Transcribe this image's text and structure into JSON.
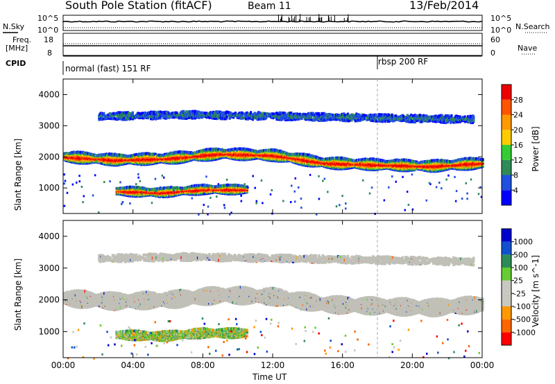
{
  "header": {
    "station": "South Pole Station (fitACF)",
    "beam": "Beam 11",
    "date": "13/Feb/2014"
  },
  "sky_panel": {
    "left_label": "N.Sky",
    "right_label": "N.Search",
    "left_ticks": [
      "10^5",
      "10^0"
    ],
    "right_ticks": [
      "10^5",
      "10^0"
    ]
  },
  "freq_panel": {
    "left_label_1": "Freq.",
    "left_label_2": "[MHz]",
    "right_label": "Nave",
    "left_ticks": [
      "18",
      "8"
    ],
    "right_ticks": [
      "60",
      "0"
    ]
  },
  "cpid_panel": {
    "label": "CPID",
    "modes": [
      "normal (fast) 151 RF",
      "rbsp 200 RF"
    ],
    "mode_change_hour": 18.0
  },
  "colors": {
    "power_scale": [
      "#0000ff",
      "#2050e0",
      "#2e8b57",
      "#33cc33",
      "#ffcc00",
      "#ff9900",
      "#ff5500",
      "#ee0000"
    ],
    "velocity_scale": [
      "#ff0000",
      "#ff6600",
      "#ff9900",
      "#c8c8c0",
      "#c8c8c0",
      "#66cc33",
      "#2e8b57",
      "#1050d0",
      "#0000cc"
    ],
    "ground_scatter": "#c0c0b8"
  },
  "chart_data": [
    {
      "type": "heatmap",
      "name": "power",
      "ylabel": "Slant Range [km]",
      "xlabel": "Time UT",
      "x_ticks": [
        "00:00",
        "04:00",
        "08:00",
        "12:00",
        "16:00",
        "20:00",
        "00:00"
      ],
      "xlim_hours": [
        0,
        24
      ],
      "ylim_km": [
        180,
        4500
      ],
      "y_ticks": [
        1000,
        2000,
        3000,
        4000
      ],
      "colorbar": {
        "label": "Power [dB]",
        "ticks": [
          4,
          8,
          12,
          16,
          20,
          24,
          28
        ],
        "range": [
          0,
          30
        ]
      },
      "bands": [
        {
          "t_start": 0,
          "t_end": 24,
          "range_center_km": [
            2050,
            1950,
            2000,
            2150,
            2100,
            1850,
            1800,
            1750,
            1850
          ],
          "width_km": 300,
          "peak_db": 22
        },
        {
          "t_start": 3,
          "t_end": 10.5,
          "range_center_km": [
            950,
            900,
            1000,
            1000
          ],
          "width_km": 250,
          "peak_db": 20
        },
        {
          "t_start": 2,
          "t_end": 23.5,
          "range_center_km": [
            3350,
            3400,
            3350,
            3300,
            3250
          ],
          "width_km": 200,
          "peak_db": 8
        }
      ]
    },
    {
      "type": "heatmap",
      "name": "velocity",
      "ylabel": "Slant Range [km]",
      "xlabel": "Time UT",
      "x_ticks": [
        "00:00",
        "04:00",
        "08:00",
        "12:00",
        "16:00",
        "20:00",
        "00:00"
      ],
      "xlim_hours": [
        0,
        24
      ],
      "ylim_km": [
        180,
        4500
      ],
      "y_ticks": [
        1000,
        2000,
        3000,
        4000
      ],
      "colorbar": {
        "label": "Velocity [m s^-1]",
        "ticks": [
          "1000",
          "500",
          "100",
          "25",
          "-25",
          "-100",
          "-500",
          "-1000"
        ]
      },
      "bands": [
        {
          "t_start": 0,
          "t_end": 24,
          "range_center_km": [
            2100,
            2000,
            2050,
            2200,
            2150,
            1900,
            1850,
            1800,
            1900
          ],
          "width_km": 450,
          "velocity": 0,
          "ground_scatter": true
        },
        {
          "t_start": 3,
          "t_end": 10.5,
          "range_center_km": [
            950,
            900,
            1000,
            1000
          ],
          "width_km": 250,
          "velocity": 150
        },
        {
          "t_start": 2,
          "t_end": 23.5,
          "range_center_km": [
            3350,
            3400,
            3350,
            3300,
            3250
          ],
          "width_km": 200,
          "velocity": 0,
          "ground_scatter": true
        }
      ]
    }
  ]
}
